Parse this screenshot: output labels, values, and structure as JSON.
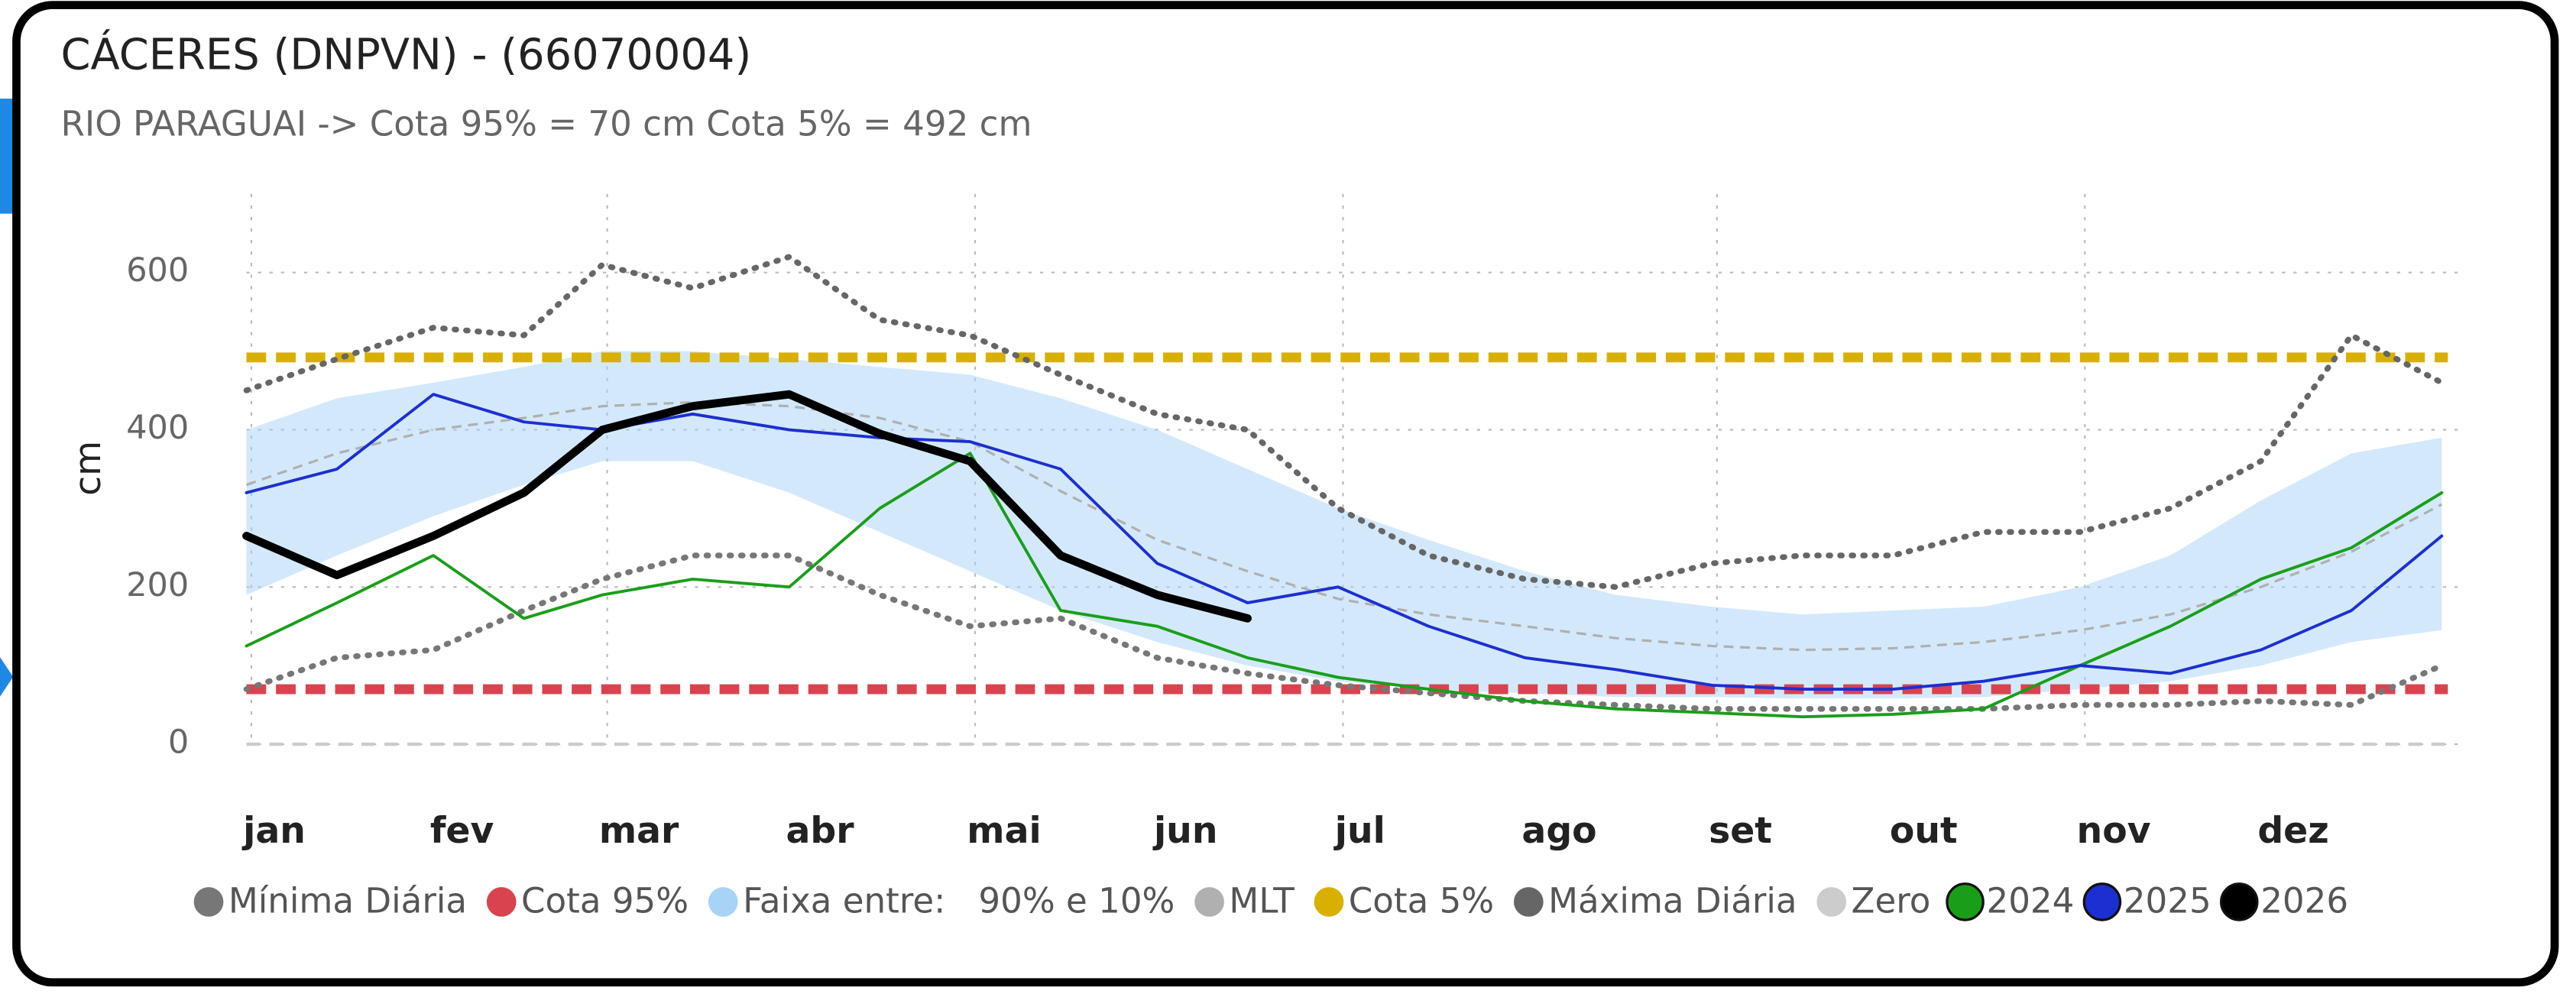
{
  "chart_data": {
    "type": "line",
    "title": "CÁCERES (DNPVN) - (66070004)",
    "subtitle": "RIO PARAGUAI -> Cota 95% = 70 cm   Cota 5% = 492 cm",
    "y_label": "cm",
    "x": [
      1,
      16,
      32,
      47,
      60,
      75,
      91,
      106,
      121,
      136,
      152,
      167,
      182,
      197,
      213,
      228,
      244,
      259,
      274,
      289,
      305,
      320,
      335,
      350,
      365
    ],
    "xlim": [
      1,
      366
    ],
    "xticks": [
      {
        "value": 1,
        "label": "jan"
      },
      {
        "value": 32,
        "label": "fev"
      },
      {
        "value": 60,
        "label": "mar"
      },
      {
        "value": 91,
        "label": "abr"
      },
      {
        "value": 121,
        "label": "mai"
      },
      {
        "value": 152,
        "label": "jun"
      },
      {
        "value": 182,
        "label": "jul"
      },
      {
        "value": 213,
        "label": "ago"
      },
      {
        "value": 244,
        "label": "set"
      },
      {
        "value": 274,
        "label": "out"
      },
      {
        "value": 305,
        "label": "nov"
      },
      {
        "value": 335,
        "label": "dez"
      }
    ],
    "ylim": [
      0,
      700
    ],
    "yticks": [
      0,
      200,
      400,
      600
    ],
    "grid": true,
    "series": [
      {
        "name": "Mínima Diária",
        "color": "#777777",
        "style": "dotted",
        "values": [
          70,
          110,
          120,
          170,
          210,
          240,
          240,
          190,
          150,
          160,
          110,
          90,
          75,
          65,
          55,
          50,
          45,
          45,
          45,
          45,
          50,
          50,
          55,
          50,
          100
        ]
      },
      {
        "name": "Cota 95%",
        "color": "#d9434f",
        "style": "hline",
        "value": 70
      },
      {
        "name": "Faixa entre:   90% e 10%",
        "color": "#a7d3f7",
        "style": "band",
        "values": [
          400,
          440,
          460,
          480,
          500,
          500,
          490,
          480,
          470,
          440,
          400,
          350,
          300,
          260,
          220,
          190,
          175,
          165,
          170,
          175,
          200,
          240,
          310,
          370,
          390
        ],
        "lower": [
          190,
          240,
          290,
          330,
          360,
          360,
          320,
          270,
          220,
          170,
          130,
          100,
          80,
          70,
          65,
          60,
          60,
          58,
          58,
          60,
          70,
          80,
          100,
          130,
          145
        ]
      },
      {
        "name": "MLT",
        "color": "#b0b0b0",
        "style": "dashed",
        "values": [
          330,
          370,
          400,
          415,
          430,
          435,
          430,
          415,
          385,
          322,
          260,
          220,
          185,
          165,
          150,
          135,
          125,
          120,
          122,
          130,
          145,
          165,
          200,
          245,
          305
        ]
      },
      {
        "name": "Cota 5%",
        "color": "#d8b100",
        "style": "hline",
        "value": 492
      },
      {
        "name": "Máxima Diária",
        "color": "#666666",
        "style": "dotted",
        "values": [
          450,
          490,
          530,
          520,
          610,
          580,
          620,
          540,
          520,
          470,
          420,
          400,
          300,
          240,
          210,
          200,
          230,
          240,
          240,
          270,
          270,
          300,
          360,
          520,
          460
        ]
      },
      {
        "name": "Zero",
        "color": "#cccccc",
        "style": "hline",
        "value": 0
      },
      {
        "name": "2024",
        "color": "#1a9e1a",
        "style": "solid",
        "values": [
          125,
          180,
          240,
          160,
          190,
          210,
          200,
          300,
          370,
          170,
          150,
          110,
          85,
          70,
          55,
          45,
          40,
          35,
          38,
          45,
          100,
          150,
          210,
          250,
          320
        ]
      },
      {
        "name": "2025",
        "color": "#1c2fd0",
        "style": "solid",
        "values": [
          320,
          350,
          445,
          410,
          400,
          420,
          400,
          390,
          385,
          350,
          230,
          180,
          200,
          150,
          110,
          95,
          75,
          70,
          70,
          80,
          100,
          90,
          120,
          170,
          265
        ]
      },
      {
        "name": "2026",
        "color": "#000000",
        "style": "bold",
        "values": [
          265,
          215,
          265,
          320,
          400,
          430,
          445,
          395,
          360,
          240,
          190,
          160,
          null,
          null,
          null,
          null,
          null,
          null,
          null,
          null,
          null,
          null,
          null,
          null,
          null
        ]
      }
    ]
  }
}
